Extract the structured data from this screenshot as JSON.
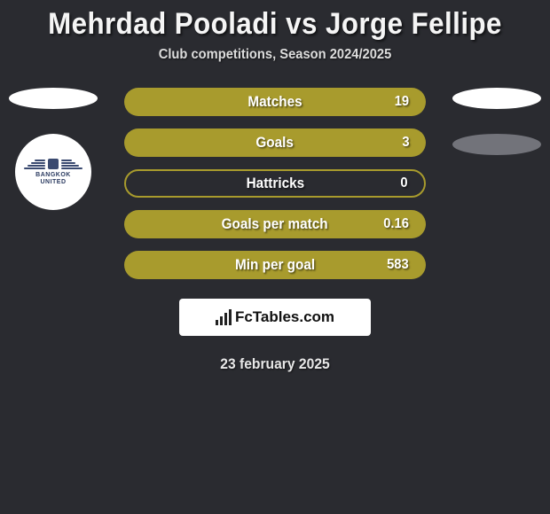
{
  "title": "Mehrdad Pooladi vs Jorge Fellipe",
  "subtitle": "Club competitions, Season 2024/2025",
  "date": "23 february 2025",
  "brand": "FcTables.com",
  "colors": {
    "background": "#2a2b30",
    "bar_fill": "#a89b2d",
    "bar_outline": "#a89b2d",
    "ellipse_light": "#ffffff",
    "ellipse_dark": "#72737a",
    "text": "#ffffff"
  },
  "chart": {
    "type": "infographic",
    "bars": [
      {
        "label": "Matches",
        "value": "19",
        "fill_pct": 100
      },
      {
        "label": "Goals",
        "value": "3",
        "fill_pct": 100
      },
      {
        "label": "Hattricks",
        "value": "0",
        "fill_pct": 0
      },
      {
        "label": "Goals per match",
        "value": "0.16",
        "fill_pct": 100
      },
      {
        "label": "Min per goal",
        "value": "583",
        "fill_pct": 100
      }
    ]
  },
  "left_badges": {
    "ellipse_color": "#ffffff",
    "club": {
      "line1": "BANGKOK",
      "line2": "UNITED"
    }
  },
  "right_badges": {
    "ellipse1_color": "#ffffff",
    "ellipse2_color": "#72737a"
  }
}
